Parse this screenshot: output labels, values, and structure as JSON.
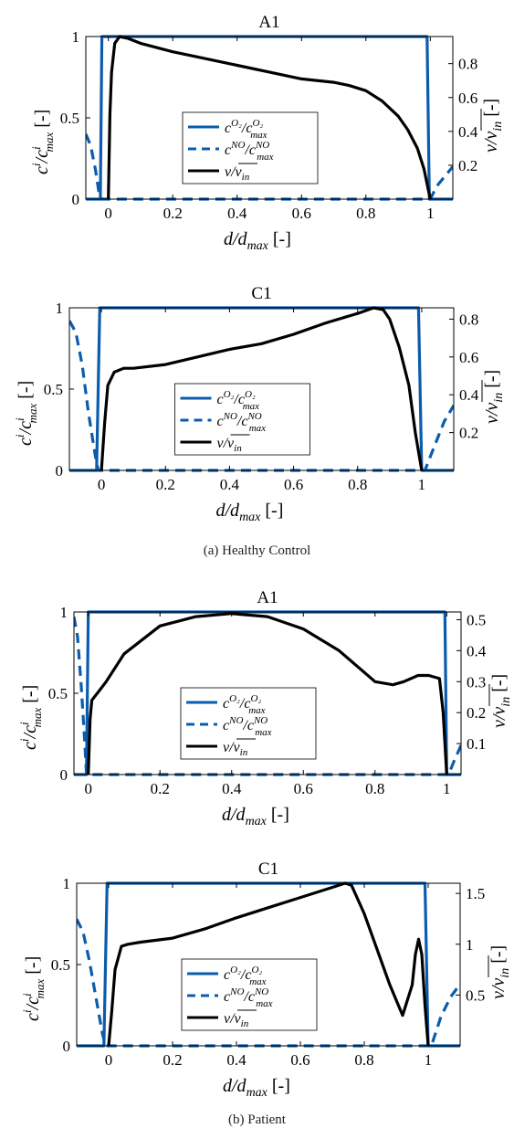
{
  "figure": {
    "caption_a": "(a) Healthy Control",
    "caption_b": "(b) Patient",
    "colors": {
      "blue": "#0a5cad",
      "black": "#000000"
    },
    "legend": {
      "o2": {
        "base": "c",
        "sup": "O₂",
        "slash": "/",
        "sub": "max"
      },
      "no": {
        "base": "c",
        "sup": "NO",
        "slash": "/",
        "sub": "max"
      },
      "v": {
        "text": "v/",
        "over": "v",
        "sub": "in"
      }
    },
    "axis_text": {
      "xlabel": "d/d_max [-]",
      "ylabel_left": "c^i/c^i_max [-]",
      "ylabel_right": "v/v_in [-]"
    }
  },
  "chart_data": [
    {
      "type": "line",
      "title": "A1",
      "panel": "(a) Healthy Control",
      "xlim": [
        -0.07,
        1.07
      ],
      "ylim": [
        0,
        1
      ],
      "rlim": [
        0,
        0.96
      ],
      "xticks": [
        "0",
        "0.2",
        "0.4",
        "0.6",
        "0.8",
        "1"
      ],
      "xtick_values": [
        0,
        0.2,
        0.4,
        0.6,
        0.8,
        1
      ],
      "yticks": [
        "0",
        "0.5",
        "1"
      ],
      "ytick_values": [
        0,
        0.5,
        1
      ],
      "rticks": [
        "0.2",
        "0.4",
        "0.6",
        "0.8"
      ],
      "rtick_values": [
        0.2,
        0.4,
        0.6,
        0.8
      ],
      "series": [
        {
          "name": "c^{O2}/c^{O2}_max",
          "axis": "left",
          "style": "solid",
          "color": "#0a5cad",
          "x": [
            -0.07,
            -0.025,
            -0.02,
            0.99,
            0.997,
            1.07
          ],
          "y": [
            0,
            0,
            1,
            1,
            0,
            0
          ]
        },
        {
          "name": "c^{NO}/c^{NO}_max",
          "axis": "left",
          "style": "dashed",
          "color": "#0a5cad",
          "x": [
            -0.07,
            -0.055,
            -0.04,
            -0.03,
            -0.02,
            1.0,
            1.02,
            1.045,
            1.07
          ],
          "y": [
            0.4,
            0.33,
            0.18,
            0.05,
            0,
            0,
            0.08,
            0.14,
            0.2
          ]
        },
        {
          "name": "v/v_in",
          "axis": "right",
          "style": "solid",
          "color": "#000000",
          "x": [
            0,
            0.005,
            0.01,
            0.02,
            0.035,
            0.06,
            0.1,
            0.2,
            0.3,
            0.4,
            0.5,
            0.6,
            0.7,
            0.75,
            0.8,
            0.85,
            0.9,
            0.93,
            0.96,
            0.98,
            1.0
          ],
          "y": [
            0,
            0.5,
            0.75,
            0.92,
            0.96,
            0.95,
            0.92,
            0.87,
            0.83,
            0.79,
            0.75,
            0.71,
            0.69,
            0.67,
            0.64,
            0.58,
            0.49,
            0.41,
            0.3,
            0.18,
            0
          ]
        }
      ]
    },
    {
      "type": "line",
      "title": "C1",
      "panel": "(a) Healthy Control",
      "xlim": [
        -0.1,
        1.1
      ],
      "ylim": [
        0,
        1
      ],
      "rlim": [
        0,
        0.86
      ],
      "xticks": [
        "0",
        "0.2",
        "0.4",
        "0.6",
        "0.8",
        "1"
      ],
      "xtick_values": [
        0,
        0.2,
        0.4,
        0.6,
        0.8,
        1
      ],
      "yticks": [
        "0",
        "0.5",
        "1"
      ],
      "ytick_values": [
        0,
        0.5,
        1
      ],
      "rticks": [
        "0.2",
        "0.4",
        "0.6",
        "0.8"
      ],
      "rtick_values": [
        0.2,
        0.4,
        0.6,
        0.8
      ],
      "series": [
        {
          "name": "c^{O2}/c^{O2}_max",
          "axis": "left",
          "style": "solid",
          "color": "#0a5cad",
          "x": [
            -0.1,
            -0.015,
            -0.005,
            0.99,
            1.0,
            1.1
          ],
          "y": [
            0,
            0,
            1,
            1,
            0,
            0
          ]
        },
        {
          "name": "c^{NO}/c^{NO}_max",
          "axis": "left",
          "style": "dashed",
          "color": "#0a5cad",
          "x": [
            -0.1,
            -0.08,
            -0.06,
            -0.04,
            -0.02,
            -0.01,
            1.01,
            1.04,
            1.07,
            1.1
          ],
          "y": [
            0.92,
            0.85,
            0.65,
            0.35,
            0.1,
            0,
            0,
            0.15,
            0.3,
            0.4
          ]
        },
        {
          "name": "v/v_in",
          "axis": "right",
          "style": "solid",
          "color": "#000000",
          "x": [
            0,
            0.01,
            0.02,
            0.04,
            0.07,
            0.1,
            0.2,
            0.3,
            0.4,
            0.5,
            0.6,
            0.7,
            0.8,
            0.85,
            0.88,
            0.9,
            0.93,
            0.96,
            0.98,
            1.0
          ],
          "y": [
            0,
            0.25,
            0.45,
            0.52,
            0.54,
            0.54,
            0.56,
            0.6,
            0.64,
            0.67,
            0.72,
            0.78,
            0.83,
            0.86,
            0.85,
            0.8,
            0.65,
            0.45,
            0.2,
            0
          ]
        }
      ]
    },
    {
      "type": "line",
      "title": "A1",
      "panel": "(b) Patient",
      "xlim": [
        -0.04,
        1.04
      ],
      "ylim": [
        0,
        1
      ],
      "rlim": [
        0,
        0.525
      ],
      "xticks": [
        "0",
        "0.2",
        "0.4",
        "0.6",
        "0.8",
        "1"
      ],
      "xtick_values": [
        0,
        0.2,
        0.4,
        0.6,
        0.8,
        1
      ],
      "yticks": [
        "0",
        "0.5",
        "1"
      ],
      "ytick_values": [
        0,
        0.5,
        1
      ],
      "rticks": [
        "0.1",
        "0.2",
        "0.3",
        "0.4",
        "0.5"
      ],
      "rtick_values": [
        0.1,
        0.2,
        0.3,
        0.4,
        0.5
      ],
      "series": [
        {
          "name": "c^{O2}/c^{O2}_max",
          "axis": "left",
          "style": "solid",
          "color": "#0a5cad",
          "x": [
            -0.04,
            -0.005,
            0.0,
            0.995,
            1.0,
            1.04
          ],
          "y": [
            0,
            0,
            1,
            1,
            0,
            0
          ]
        },
        {
          "name": "c^{NO}/c^{NO}_max",
          "axis": "left",
          "style": "dashed",
          "color": "#0a5cad",
          "x": [
            -0.04,
            -0.03,
            -0.02,
            -0.01,
            -0.005,
            1.005,
            1.02,
            1.04
          ],
          "y": [
            0.97,
            0.85,
            0.55,
            0.2,
            0,
            0,
            0.08,
            0.18
          ]
        },
        {
          "name": "v/v_in",
          "axis": "right",
          "style": "solid",
          "color": "#000000",
          "x": [
            0,
            0.005,
            0.01,
            0.03,
            0.05,
            0.1,
            0.2,
            0.3,
            0.4,
            0.5,
            0.6,
            0.7,
            0.75,
            0.8,
            0.85,
            0.88,
            0.92,
            0.95,
            0.98,
            0.99,
            1.0
          ],
          "y": [
            0,
            0.18,
            0.24,
            0.27,
            0.3,
            0.39,
            0.48,
            0.51,
            0.52,
            0.51,
            0.47,
            0.4,
            0.35,
            0.3,
            0.29,
            0.3,
            0.32,
            0.32,
            0.31,
            0.2,
            0
          ]
        }
      ]
    },
    {
      "type": "line",
      "title": "C1",
      "panel": "(b) Patient",
      "xlim": [
        -0.1,
        1.1
      ],
      "ylim": [
        0,
        1
      ],
      "rlim": [
        0,
        1.6
      ],
      "xticks": [
        "0",
        "0.2",
        "0.4",
        "0.6",
        "0.8",
        "1"
      ],
      "xtick_values": [
        0,
        0.2,
        0.4,
        0.6,
        0.8,
        1
      ],
      "yticks": [
        "0",
        "0.5",
        "1"
      ],
      "ytick_values": [
        0,
        0.5,
        1
      ],
      "rticks": [
        "0.5",
        "1",
        "1.5"
      ],
      "rtick_values": [
        0.5,
        1,
        1.5
      ],
      "series": [
        {
          "name": "c^{O2}/c^{O2}_max",
          "axis": "left",
          "style": "solid",
          "color": "#0a5cad",
          "x": [
            -0.1,
            -0.015,
            -0.005,
            0.99,
            1.0,
            1.1
          ],
          "y": [
            0,
            0,
            1,
            1,
            0,
            0
          ]
        },
        {
          "name": "c^{NO}/c^{NO}_max",
          "axis": "left",
          "style": "dashed",
          "color": "#0a5cad",
          "x": [
            -0.1,
            -0.08,
            -0.06,
            -0.04,
            -0.02,
            -0.01,
            1.01,
            1.04,
            1.07,
            1.1
          ],
          "y": [
            0.78,
            0.7,
            0.52,
            0.3,
            0.08,
            0,
            0,
            0.18,
            0.3,
            0.38
          ]
        },
        {
          "name": "v/v_in",
          "axis": "right",
          "style": "solid",
          "color": "#000000",
          "x": [
            0,
            0.01,
            0.02,
            0.04,
            0.06,
            0.1,
            0.2,
            0.3,
            0.4,
            0.5,
            0.6,
            0.7,
            0.74,
            0.76,
            0.8,
            0.84,
            0.88,
            0.92,
            0.95,
            0.96,
            0.97,
            0.98,
            0.99,
            1.0
          ],
          "y": [
            0,
            0.35,
            0.75,
            0.98,
            1.0,
            1.02,
            1.06,
            1.15,
            1.26,
            1.36,
            1.46,
            1.56,
            1.6,
            1.58,
            1.3,
            0.95,
            0.6,
            0.3,
            0.6,
            0.9,
            1.05,
            0.9,
            0.4,
            0
          ]
        }
      ]
    }
  ]
}
